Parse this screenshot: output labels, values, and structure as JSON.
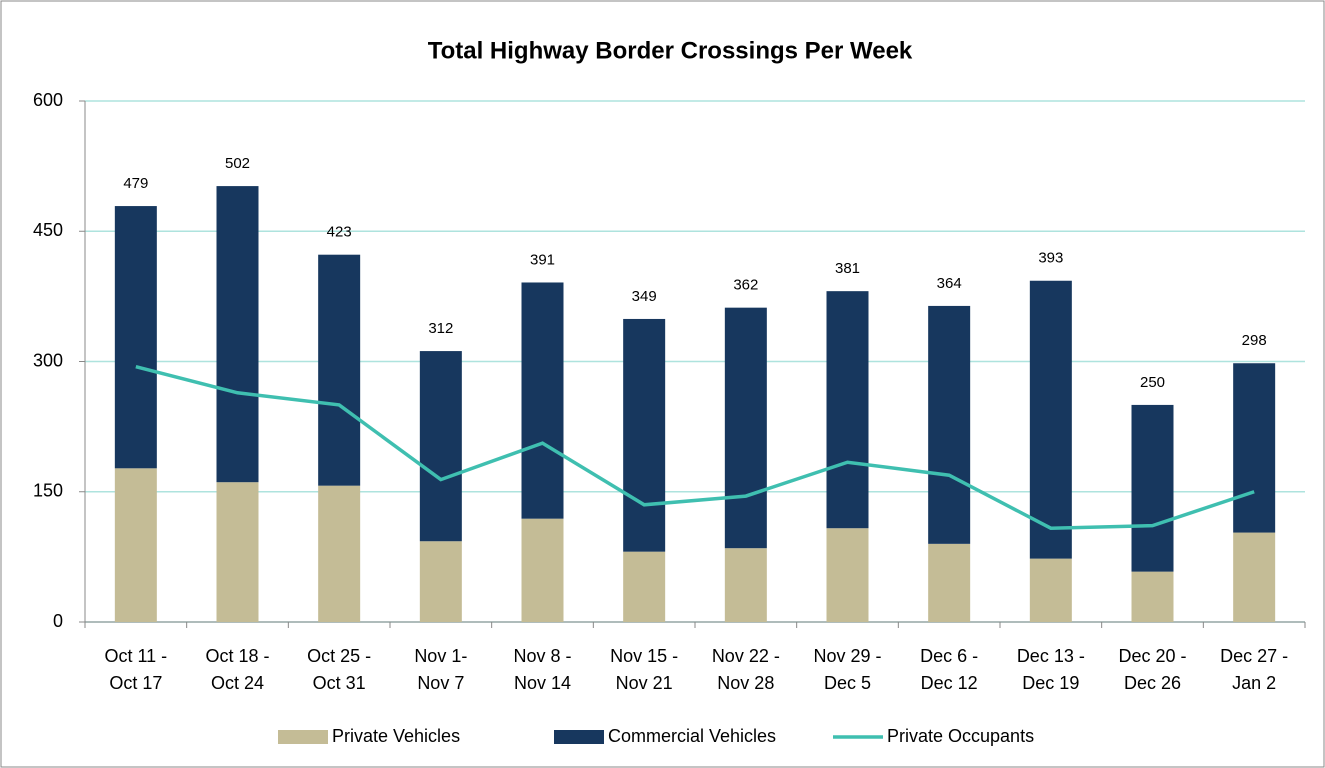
{
  "chart_data": {
    "type": "stacked_bar_line",
    "title": "Total Highway Border Crossings Per Week",
    "categories": [
      [
        "Oct 11 -",
        "Oct 17"
      ],
      [
        "Oct 18 -",
        "Oct 24"
      ],
      [
        "Oct 25 -",
        "Oct 31"
      ],
      [
        "Nov 1-",
        "Nov 7"
      ],
      [
        "Nov 8 -",
        "Nov 14"
      ],
      [
        "Nov 15 -",
        "Nov 21"
      ],
      [
        "Nov 22 -",
        "Nov 28"
      ],
      [
        "Nov 29 -",
        "Dec 5"
      ],
      [
        "Dec 6 -",
        "Dec 12"
      ],
      [
        "Dec 13 -",
        "Dec 19"
      ],
      [
        "Dec 20 -",
        "Dec 26"
      ],
      [
        "Dec 27 -",
        "Jan 2"
      ]
    ],
    "series": [
      {
        "name": "Private Vehicles",
        "color": "#c4bc96",
        "kind": "bar",
        "values": [
          177,
          161,
          157,
          93,
          119,
          81,
          85,
          108,
          90,
          73,
          58,
          103
        ]
      },
      {
        "name": "Commercial Vehicles",
        "color": "#17375e",
        "kind": "bar",
        "values": [
          302,
          341,
          266,
          219,
          272,
          268,
          277,
          273,
          274,
          320,
          192,
          195
        ]
      },
      {
        "name": "Private Occupants",
        "color": "#3fbfb0",
        "kind": "line",
        "values": [
          294,
          264,
          250,
          164,
          206,
          135,
          145,
          184,
          169,
          108,
          111,
          150
        ]
      }
    ],
    "totals": [
      479,
      502,
      423,
      312,
      391,
      349,
      362,
      381,
      364,
      393,
      250,
      298
    ],
    "ylim": [
      0,
      600
    ],
    "yticks": [
      0,
      150,
      300,
      450,
      600
    ],
    "grid": true
  }
}
